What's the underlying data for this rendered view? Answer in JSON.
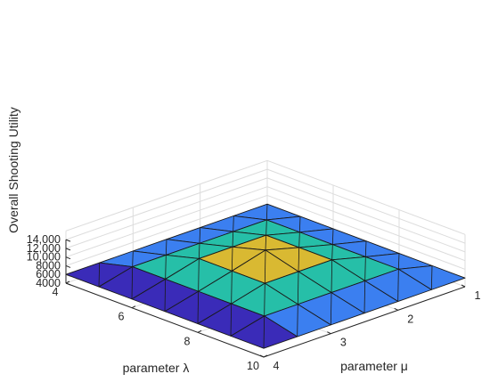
{
  "chart_data": {
    "type": "surface",
    "title": "",
    "xlabel": "parameter λ",
    "ylabel": "parameter μ",
    "zlabel": "Overall Shooting Utility",
    "x_ticks": [
      "4",
      "6",
      "8",
      "10"
    ],
    "y_ticks": [
      "1",
      "2",
      "3",
      "4"
    ],
    "z_ticks": [
      "4000",
      "6000",
      "8000",
      "10,000",
      "12,000",
      "14,000"
    ],
    "xlim": [
      4,
      10
    ],
    "ylim": [
      1,
      4
    ],
    "zlim": [
      4000,
      14000
    ],
    "grid": true,
    "colormap": "parula",
    "x": [
      4,
      5,
      6,
      7,
      8,
      9,
      10
    ],
    "y": [
      1,
      1.5,
      2,
      2.5,
      3,
      3.5,
      4
    ],
    "z": [
      [
        6000,
        6000,
        6000,
        6000,
        6000,
        6000,
        6000
      ],
      [
        6000,
        7900,
        7900,
        7900,
        7900,
        7900,
        6000
      ],
      [
        6000,
        7900,
        9900,
        9900,
        9900,
        7900,
        6000
      ],
      [
        6000,
        7900,
        9900,
        12000,
        9900,
        7900,
        6000
      ],
      [
        6000,
        7900,
        9900,
        9900,
        9900,
        7900,
        6000
      ],
      [
        6000,
        7900,
        7900,
        7900,
        7900,
        7900,
        6000
      ],
      [
        6000,
        6000,
        6000,
        6000,
        6000,
        6000,
        6000
      ]
    ],
    "face_values": [
      [
        6000,
        6000,
        6000,
        6000,
        6000,
        6000
      ],
      [
        6000,
        8000,
        8000,
        8000,
        8000,
        6000
      ],
      [
        6000,
        8000,
        10000,
        10000,
        8000,
        6000
      ],
      [
        6000,
        8000,
        10000,
        10000,
        8000,
        6000
      ],
      [
        6000,
        8000,
        8000,
        8000,
        8000,
        6000
      ],
      [
        4000,
        4000,
        4000,
        4000,
        4000,
        4000
      ]
    ],
    "face_colors": {
      "4000": "#3a2bb8",
      "6000": "#3b7ff0",
      "8000": "#26bfa8",
      "10000": "#d9b932",
      "12000": "#f2f01e"
    }
  }
}
